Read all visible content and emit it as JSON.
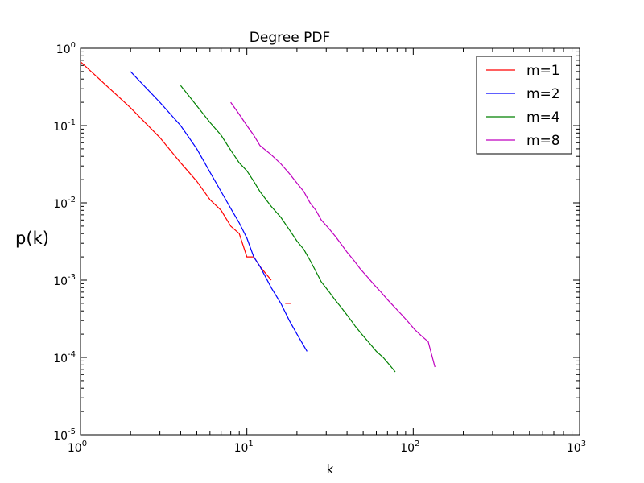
{
  "chart_data": {
    "type": "line",
    "title": "Degree PDF",
    "xlabel": "k",
    "ylabel": "p(k)",
    "xscale": "log",
    "yscale": "log",
    "xlim": [
      1,
      1000
    ],
    "ylim": [
      1e-05,
      1
    ],
    "grid": false,
    "legend_position": "top-right",
    "x_ticks": [
      {
        "base": "10",
        "exp": "0"
      },
      {
        "base": "10",
        "exp": "1"
      },
      {
        "base": "10",
        "exp": "2"
      },
      {
        "base": "10",
        "exp": "3"
      }
    ],
    "y_ticks": [
      {
        "base": "10",
        "exp": "0"
      },
      {
        "base": "10",
        "exp": "-1"
      },
      {
        "base": "10",
        "exp": "-2"
      },
      {
        "base": "10",
        "exp": "-3"
      },
      {
        "base": "10",
        "exp": "-4"
      },
      {
        "base": "10",
        "exp": "-5"
      }
    ],
    "series": [
      {
        "name": "m=1",
        "color": "#ff0000",
        "points": [
          [
            1,
            0.67
          ],
          [
            2,
            0.17
          ],
          [
            3,
            0.07
          ],
          [
            4,
            0.033
          ],
          [
            5,
            0.019
          ],
          [
            6,
            0.011
          ],
          [
            7,
            0.008
          ],
          [
            8,
            0.005
          ],
          [
            9,
            0.004
          ],
          [
            10,
            0.002
          ],
          [
            11,
            0.002
          ],
          [
            12,
            0.0015
          ],
          [
            14,
            0.001
          ],
          null,
          [
            17,
            0.0005
          ],
          [
            18.5,
            0.0005
          ]
        ]
      },
      {
        "name": "m=2",
        "color": "#0000ff",
        "points": [
          [
            2,
            0.5
          ],
          [
            3,
            0.2
          ],
          [
            4,
            0.1
          ],
          [
            5,
            0.05
          ],
          [
            6,
            0.025
          ],
          [
            7,
            0.014
          ],
          [
            8,
            0.0085
          ],
          [
            9,
            0.0055
          ],
          [
            10,
            0.0035
          ],
          [
            11,
            0.002
          ],
          [
            12,
            0.0015
          ],
          [
            14,
            0.0008
          ],
          [
            16,
            0.0005
          ],
          [
            18,
            0.0003
          ],
          [
            20,
            0.0002
          ],
          [
            23,
            0.00012
          ]
        ]
      },
      {
        "name": "m=4",
        "color": "#008000",
        "points": [
          [
            4,
            0.33
          ],
          [
            5,
            0.18
          ],
          [
            6,
            0.11
          ],
          [
            7,
            0.075
          ],
          [
            8,
            0.048
          ],
          [
            9,
            0.033
          ],
          [
            10,
            0.026
          ],
          [
            11,
            0.019
          ],
          [
            12,
            0.014
          ],
          [
            14,
            0.009
          ],
          [
            16,
            0.0065
          ],
          [
            18,
            0.0045
          ],
          [
            20,
            0.0032
          ],
          [
            22,
            0.0025
          ],
          [
            24,
            0.0018
          ],
          [
            26,
            0.0013
          ],
          [
            28,
            0.00095
          ],
          [
            31,
            0.00072
          ],
          [
            34,
            0.00055
          ],
          [
            37,
            0.00044
          ],
          [
            41,
            0.00033
          ],
          [
            45,
            0.00025
          ],
          [
            50,
            0.00019
          ],
          [
            55,
            0.00015
          ],
          [
            60,
            0.00012
          ],
          [
            66,
            0.0001
          ],
          [
            72,
            8e-05
          ],
          [
            78,
            6.5e-05
          ]
        ]
      },
      {
        "name": "m=8",
        "color": "#bf00bf",
        "points": [
          [
            8,
            0.2
          ],
          [
            9,
            0.14
          ],
          [
            10,
            0.1
          ],
          [
            11,
            0.075
          ],
          [
            12,
            0.055
          ],
          [
            14,
            0.042
          ],
          [
            16,
            0.032
          ],
          [
            18,
            0.024
          ],
          [
            20,
            0.018
          ],
          [
            22,
            0.014
          ],
          [
            24,
            0.01
          ],
          [
            26,
            0.008
          ],
          [
            28,
            0.006
          ],
          [
            31,
            0.0047
          ],
          [
            34,
            0.0037
          ],
          [
            37,
            0.0029
          ],
          [
            40,
            0.0023
          ],
          [
            44,
            0.0018
          ],
          [
            48,
            0.0014
          ],
          [
            53,
            0.0011
          ],
          [
            58,
            0.00088
          ],
          [
            64,
            0.0007
          ],
          [
            70,
            0.00056
          ],
          [
            77,
            0.00045
          ],
          [
            85,
            0.00036
          ],
          [
            93,
            0.00029
          ],
          [
            102,
            0.00023
          ],
          [
            112,
            0.00019
          ],
          [
            123,
            0.00016
          ],
          [
            135,
            7.5e-05
          ]
        ]
      }
    ]
  }
}
